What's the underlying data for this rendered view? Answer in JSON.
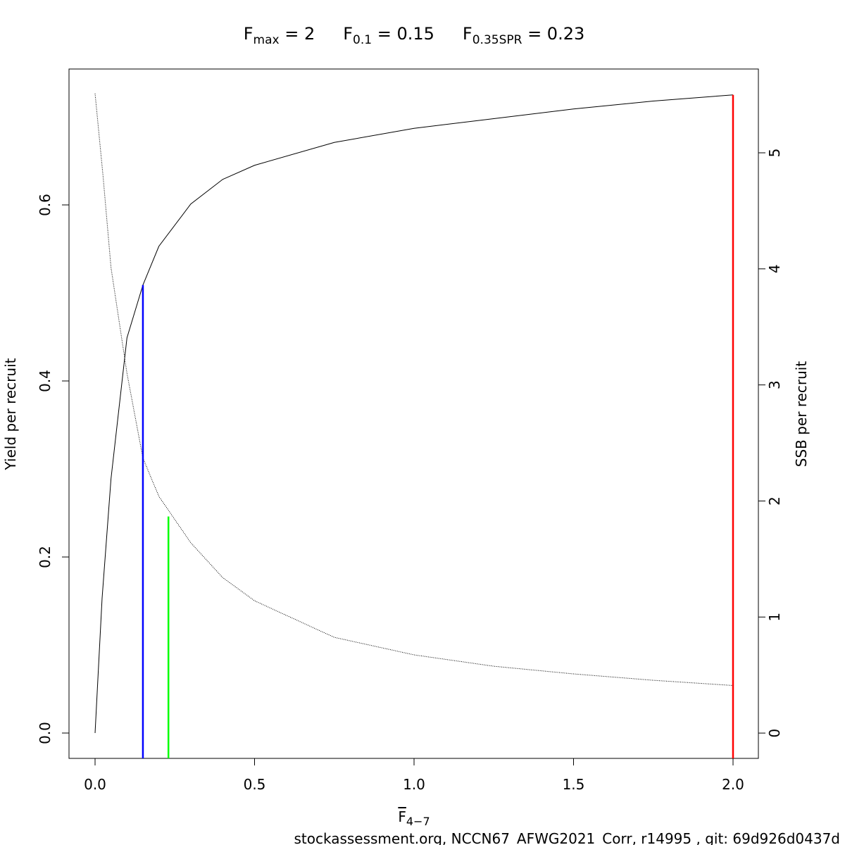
{
  "chart_data": {
    "type": "line",
    "title_parts": [
      {
        "base": "F",
        "sub": "max",
        "rest": " = 2"
      },
      {
        "base": "F",
        "sub": "0.1",
        "rest": " = 0.15"
      },
      {
        "base": "F",
        "sub": "0.35SPR",
        "rest": " = 0.23"
      }
    ],
    "xlabel": {
      "base": "F",
      "sub": "4−7"
    },
    "ylabel": "Yield per recruit",
    "y2label": "SSB per recruit",
    "footer": "stockassessment.org, NCCN67_AFWG2021_Corr, r14995 , git: 69d926d0437d",
    "xlim": [
      -0.0817,
      2.0795
    ],
    "ylim": [
      -0.0288,
      0.7544
    ],
    "y2lim": [
      -0.218,
      5.722
    ],
    "xticks": [
      {
        "value": 0,
        "label": "0.0"
      },
      {
        "value": 0.5,
        "label": "0.5"
      },
      {
        "value": 1,
        "label": "1.0"
      },
      {
        "value": 1.5,
        "label": "1.5"
      },
      {
        "value": 2,
        "label": "2.0"
      }
    ],
    "yticks": [
      {
        "value": 0,
        "label": "0.0"
      },
      {
        "value": 0.2,
        "label": "0.2"
      },
      {
        "value": 0.4,
        "label": "0.4"
      },
      {
        "value": 0.6,
        "label": "0.6"
      }
    ],
    "y2ticks": [
      0,
      1,
      2,
      3,
      4,
      5
    ],
    "series": [
      {
        "color": "#000000",
        "dash": "none",
        "x": [
          0,
          0.022,
          0.05,
          0.1,
          0.15,
          0.2,
          0.3,
          0.4,
          0.5,
          0.75,
          1.0,
          1.25,
          1.5,
          1.75,
          2.0
        ],
        "values": [
          0,
          0.153,
          0.289,
          0.449,
          0.509,
          0.553,
          0.601,
          0.629,
          0.645,
          0.671,
          0.687,
          0.698,
          0.709,
          0.718,
          0.725
        ]
      },
      {
        "color": "#000000",
        "dash": "1 1.5",
        "axis": "y2",
        "x": [
          0,
          0.025,
          0.05,
          0.1,
          0.15,
          0.2,
          0.3,
          0.4,
          0.5,
          0.75,
          1.0,
          1.25,
          1.5,
          1.75,
          2.0
        ],
        "values": [
          5.51,
          4.8,
          4.01,
          3.1,
          2.37,
          2.04,
          1.64,
          1.34,
          1.14,
          0.825,
          0.674,
          0.576,
          0.51,
          0.455,
          0.41
        ]
      }
    ],
    "reference_lines": [
      {
        "x": 0.15,
        "y": 0.509,
        "color": "#0000ff"
      },
      {
        "x": 0.23,
        "y": 0.246,
        "color": "#00ff00"
      },
      {
        "x": 2.0,
        "y": 0.725,
        "color": "#ff0000"
      }
    ]
  }
}
